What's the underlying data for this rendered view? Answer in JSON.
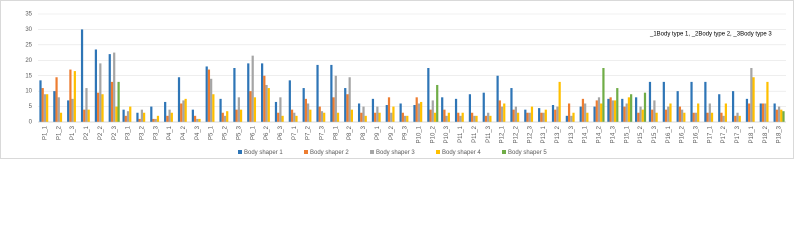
{
  "chart_data": {
    "type": "bar",
    "annotation": "_1Body type 1, _2Body type 2, _3Body type 3",
    "categories": [
      "P1_1",
      "P1_2",
      "P1_3",
      "P2_1",
      "P2_2",
      "P2_3",
      "P3_1",
      "P3_2",
      "P3_3",
      "P4_1",
      "P4_2",
      "P4_3",
      "P5_1",
      "P5_2",
      "P5_3",
      "P6_1",
      "P6_2",
      "P6_3",
      "P7_1",
      "P7_2",
      "P7_3",
      "P8_1",
      "P8_2",
      "P8_3",
      "P9_1",
      "P9_2",
      "P9_3",
      "P10_1",
      "P10_2",
      "P10_3",
      "P11_1",
      "P11_2",
      "P11_3",
      "P12_1",
      "P12_2",
      "P12_3",
      "P13_1",
      "P13_2",
      "P13_3",
      "P14_1",
      "P14_2",
      "P14_3",
      "P15_1",
      "P15_2",
      "P15_3",
      "P16_1",
      "P16_2",
      "P16_3",
      "P17_1",
      "P17_2",
      "P17_3",
      "P18_1",
      "P18_2",
      "P18_3"
    ],
    "series": [
      {
        "name": "Body shaper 1",
        "color": "#2e75b6",
        "values": [
          13.5,
          10,
          7,
          30,
          23.5,
          22,
          4,
          3,
          5,
          6.5,
          14.5,
          4,
          18,
          7.5,
          17.5,
          19,
          19,
          6.5,
          13.5,
          11,
          18.5,
          18.5,
          11,
          6,
          7.5,
          5.5,
          6,
          5.5,
          17.5,
          8,
          7.5,
          9,
          9.5,
          15,
          11,
          4,
          4.5,
          5.5,
          2,
          5,
          5,
          7.5,
          7.5,
          8,
          13,
          13,
          10,
          13,
          13,
          9,
          10,
          7.5,
          6,
          6
        ]
      },
      {
        "name": "Body shaper 2",
        "color": "#ed7d31",
        "values": [
          11,
          14.5,
          17,
          4,
          9.5,
          13,
          2,
          1,
          1,
          2,
          6,
          2,
          17,
          3,
          4,
          10,
          15,
          3,
          4,
          7.5,
          5,
          8,
          9,
          3,
          3,
          8,
          3,
          8,
          4,
          4,
          3,
          3,
          2,
          7,
          4,
          3,
          3,
          4,
          6,
          7.5,
          7,
          8,
          5,
          3,
          4,
          4,
          5,
          3,
          3,
          3,
          2,
          6,
          6,
          4
        ]
      },
      {
        "name": "Body shaper 3",
        "color": "#a5a5a5",
        "values": [
          9,
          8,
          7.5,
          11,
          19,
          22.5,
          3.5,
          4,
          1,
          4,
          7,
          1,
          14,
          2,
          8,
          21.5,
          12,
          8,
          3,
          6,
          3.5,
          15,
          14.5,
          5,
          5,
          3,
          2,
          6,
          7,
          2,
          2,
          2,
          3,
          5,
          5,
          3,
          3,
          5,
          2,
          6,
          8,
          7,
          6,
          5,
          7,
          5,
          4,
          3,
          6,
          2,
          3,
          17.5,
          6,
          5
        ]
      },
      {
        "name": "Body shaper 4",
        "color": "#ffc000",
        "values": [
          9,
          3,
          16.5,
          4,
          9,
          5,
          5,
          3,
          2,
          3,
          7.5,
          1,
          9,
          3.5,
          4,
          8,
          11,
          2,
          2,
          4,
          3,
          3,
          4,
          2,
          3,
          5,
          2,
          6.5,
          3,
          3,
          3,
          2,
          2,
          6,
          3,
          5,
          4,
          13,
          3,
          3,
          6,
          7,
          8,
          4,
          3,
          6,
          3,
          6,
          3,
          6,
          2,
          14.5,
          13,
          4
        ]
      },
      {
        "name": "Body shaper 5",
        "color": "#70ad47",
        "values": [
          0,
          0,
          0,
          0,
          0,
          13,
          0,
          0,
          0,
          0,
          0,
          0,
          0,
          0,
          0,
          0,
          0,
          0,
          0,
          0,
          0,
          0,
          0,
          0,
          0,
          0,
          0,
          0,
          12,
          0,
          0,
          0,
          0,
          0,
          0,
          0,
          0,
          0,
          0,
          0,
          17.5,
          11,
          9,
          9.5,
          0,
          0,
          0,
          0,
          0,
          0,
          0,
          0,
          0,
          3.5
        ]
      }
    ],
    "ylim": [
      0,
      35
    ],
    "yticks": [
      0,
      5,
      10,
      15,
      20,
      25,
      30,
      35
    ],
    "grid": true
  }
}
